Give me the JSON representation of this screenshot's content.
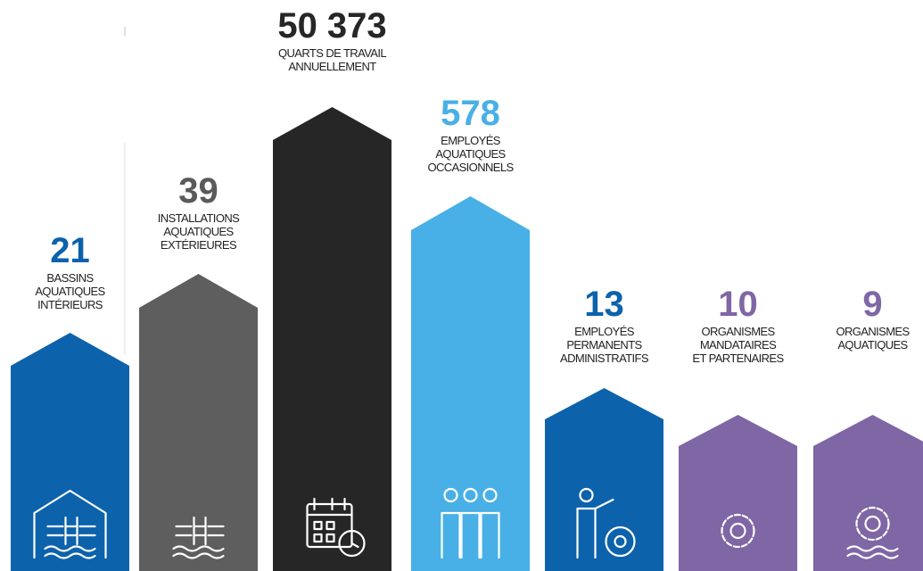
{
  "items": [
    {
      "value": "21",
      "lines": [
        "BASSINS",
        "AQUATIQUES",
        "INTÉRIEURS"
      ]
    },
    {
      "value": "39",
      "lines": [
        "INSTALLATIONS",
        "AQUATIQUES",
        "EXTÉRIEURES"
      ]
    },
    {
      "value": "50 373",
      "lines": [
        "QUARTS DE TRAVAIL",
        "ANNUELLEMENT"
      ]
    },
    {
      "value": "578",
      "lines": [
        "EMPLOYÉS",
        "AQUATIQUES",
        "OCCASIONNELS"
      ]
    },
    {
      "value": "13",
      "lines": [
        "EMPLOYÉS",
        "PERMANENTS",
        "ADMINISTRATIFS"
      ]
    },
    {
      "value": "10",
      "lines": [
        "ORGANISMES",
        "MANDATAIRES",
        "ET PARTENAIRES"
      ]
    },
    {
      "value": "9",
      "lines": [
        "ORGANISMES",
        "AQUATIQUES"
      ]
    }
  ]
}
